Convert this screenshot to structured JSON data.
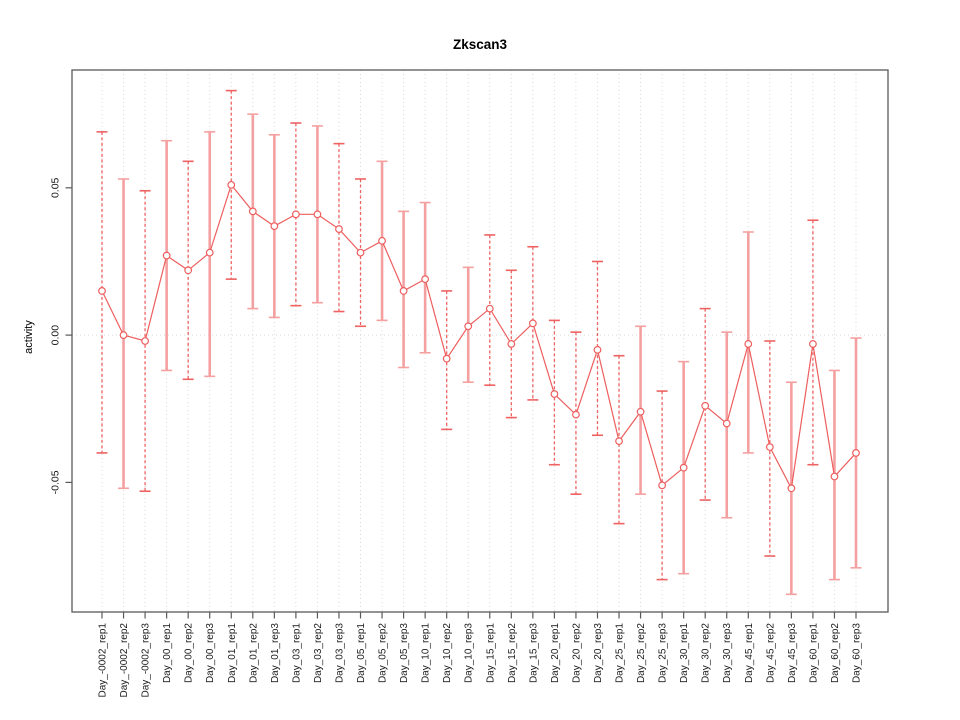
{
  "chart_data": {
    "type": "line",
    "title": "Zkscan3",
    "xlabel": "",
    "ylabel": "activity",
    "categories": [
      "Day_-0002_rep1",
      "Day_-0002_rep2",
      "Day_-0002_rep3",
      "Day_00_rep1",
      "Day_00_rep2",
      "Day_00_rep3",
      "Day_01_rep1",
      "Day_01_rep2",
      "Day_01_rep3",
      "Day_03_rep1",
      "Day_03_rep2",
      "Day_03_rep3",
      "Day_05_rep1",
      "Day_05_rep2",
      "Day_05_rep3",
      "Day_10_rep1",
      "Day_10_rep2",
      "Day_10_rep3",
      "Day_15_rep1",
      "Day_15_rep2",
      "Day_15_rep3",
      "Day_20_rep1",
      "Day_20_rep2",
      "Day_20_rep3",
      "Day_25_rep1",
      "Day_25_rep2",
      "Day_25_rep3",
      "Day_30_rep1",
      "Day_30_rep2",
      "Day_30_rep3",
      "Day_45_rep1",
      "Day_45_rep2",
      "Day_45_rep3",
      "Day_60_rep1",
      "Day_60_rep2",
      "Day_60_rep3"
    ],
    "series": [
      {
        "name": "activity",
        "values": [
          0.015,
          0.0,
          -0.002,
          0.027,
          0.022,
          0.028,
          0.051,
          0.042,
          0.037,
          0.041,
          0.041,
          0.036,
          0.028,
          0.032,
          0.015,
          0.019,
          -0.008,
          0.003,
          0.009,
          -0.003,
          0.004,
          -0.02,
          -0.027,
          -0.005,
          -0.036,
          -0.026,
          -0.051,
          -0.045,
          -0.024,
          -0.03,
          -0.003,
          -0.038,
          -0.052,
          -0.003,
          -0.048,
          -0.04
        ],
        "err_upper": [
          0.069,
          0.053,
          0.049,
          0.066,
          0.059,
          0.069,
          0.083,
          0.075,
          0.068,
          0.072,
          0.071,
          0.065,
          0.053,
          0.059,
          0.042,
          0.045,
          0.015,
          0.023,
          0.034,
          0.022,
          0.03,
          0.005,
          0.001,
          0.025,
          -0.007,
          0.003,
          -0.019,
          -0.009,
          0.009,
          0.001,
          0.035,
          -0.002,
          -0.016,
          0.039,
          -0.012,
          -0.001
        ],
        "err_lower": [
          -0.04,
          -0.052,
          -0.053,
          -0.012,
          -0.015,
          -0.014,
          0.019,
          0.009,
          0.006,
          0.01,
          0.011,
          0.008,
          0.003,
          0.005,
          -0.011,
          -0.006,
          -0.032,
          -0.016,
          -0.017,
          -0.028,
          -0.022,
          -0.044,
          -0.054,
          -0.034,
          -0.064,
          -0.054,
          -0.083,
          -0.081,
          -0.056,
          -0.062,
          -0.04,
          -0.075,
          -0.088,
          -0.044,
          -0.083,
          -0.079
        ]
      }
    ],
    "error_bar_styles": [
      "dashed",
      "solid",
      "dashed",
      "solid",
      "dashed",
      "solid",
      "dashed",
      "solid",
      "solid",
      "dashed",
      "solid",
      "dashed",
      "dashed",
      "solid",
      "solid",
      "solid",
      "dashed",
      "solid",
      "dashed",
      "dashed",
      "dashed",
      "dashed",
      "dashed",
      "dashed",
      "dashed",
      "solid",
      "dashed",
      "solid",
      "dashed",
      "solid",
      "solid",
      "dashed",
      "solid",
      "dashed",
      "solid",
      "solid"
    ],
    "y_ticks": [
      "0.05",
      "0.00",
      "-0.05"
    ],
    "y_tick_values": [
      0.05,
      0.0,
      -0.05
    ],
    "ylim": [
      -0.094,
      0.09
    ],
    "marker": "open-circle",
    "legend": "none",
    "grid": {
      "vertical": "dotted-per-category",
      "horizontal": "dotted-zero-line"
    },
    "colors": {
      "line": "#ed5e5e",
      "error_bar_dashed": "#ee6262",
      "error_bar_solid": "#f5a0a0",
      "grid": "#d9d9d9",
      "axis": "#595959",
      "text": "#1a1a1a",
      "background": "#ffffff"
    }
  }
}
